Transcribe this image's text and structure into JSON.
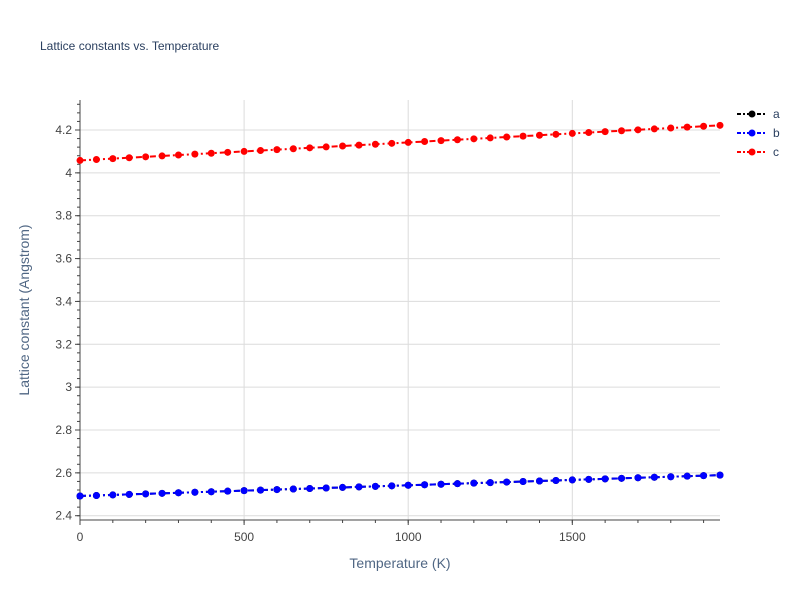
{
  "chart_data": {
    "type": "line",
    "title": "Lattice constants vs. Temperature",
    "xlabel": "Temperature (K)",
    "ylabel": "Lattice constant (Angstrom)",
    "xlim": [
      0,
      1950
    ],
    "ylim": [
      2.38,
      4.34
    ],
    "x_ticks": [
      0,
      500,
      1000,
      1500
    ],
    "y_ticks": [
      2.4,
      2.6,
      2.8,
      3,
      3.2,
      3.4,
      3.6,
      3.8,
      4,
      4.2
    ],
    "grid": true,
    "legend_position": "top-right",
    "x": [
      0,
      50,
      100,
      150,
      200,
      250,
      300,
      350,
      400,
      450,
      500,
      550,
      600,
      650,
      700,
      750,
      800,
      850,
      900,
      950,
      1000,
      1050,
      1100,
      1150,
      1200,
      1250,
      1300,
      1350,
      1400,
      1450,
      1500,
      1550,
      1600,
      1650,
      1700,
      1750,
      1800,
      1850,
      1900,
      1950
    ],
    "series": [
      {
        "name": "a",
        "color": "#000000",
        "line_style": "dashdot",
        "values": [
          2.492,
          2.4945,
          2.497,
          2.4995,
          2.502,
          2.5045,
          2.507,
          2.5095,
          2.512,
          2.5145,
          2.517,
          2.5195,
          2.522,
          2.5245,
          2.527,
          2.5295,
          2.532,
          2.5345,
          2.537,
          2.5395,
          2.542,
          2.5445,
          2.547,
          2.5495,
          2.552,
          2.5545,
          2.557,
          2.5595,
          2.562,
          2.5645,
          2.567,
          2.5695,
          2.572,
          2.5745,
          2.577,
          2.5795,
          2.582,
          2.5845,
          2.587,
          2.5895
        ]
      },
      {
        "name": "b",
        "color": "#0000ff",
        "line_style": "dashdot",
        "values": [
          2.492,
          2.4945,
          2.497,
          2.4995,
          2.502,
          2.5045,
          2.507,
          2.5095,
          2.512,
          2.5145,
          2.517,
          2.5195,
          2.522,
          2.5245,
          2.527,
          2.5295,
          2.532,
          2.5345,
          2.537,
          2.5395,
          2.542,
          2.5445,
          2.547,
          2.5495,
          2.552,
          2.5545,
          2.557,
          2.5595,
          2.562,
          2.5645,
          2.567,
          2.5695,
          2.572,
          2.5745,
          2.577,
          2.5795,
          2.582,
          2.5845,
          2.587,
          2.5895
        ]
      },
      {
        "name": "c",
        "color": "#ff0000",
        "line_style": "dashdot",
        "values": [
          4.058,
          4.0622,
          4.0664,
          4.0706,
          4.0748,
          4.079,
          4.0832,
          4.0874,
          4.0916,
          4.0958,
          4.1,
          4.1042,
          4.1084,
          4.1126,
          4.1168,
          4.121,
          4.1252,
          4.1294,
          4.1336,
          4.1378,
          4.142,
          4.1462,
          4.1504,
          4.1546,
          4.1588,
          4.163,
          4.1672,
          4.1714,
          4.1756,
          4.1798,
          4.184,
          4.1882,
          4.1924,
          4.1966,
          4.2008,
          4.205,
          4.2092,
          4.2134,
          4.2176,
          4.2218
        ]
      }
    ]
  }
}
